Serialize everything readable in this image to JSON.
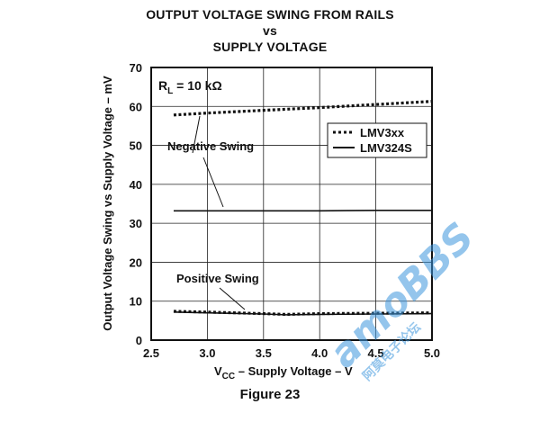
{
  "title_lines": [
    "OUTPUT VOLTAGE SWING FROM RAILS",
    "vs",
    "SUPPLY VOLTAGE"
  ],
  "figure_caption": "Figure 23",
  "watermark": {
    "brand": "amoBBS",
    "sub": "阿莫电子论坛"
  },
  "chart_data": {
    "type": "line",
    "xlabel_main": "V",
    "xlabel_sub": "CC",
    "xlabel_rest": " – Supply Voltage – V",
    "ylabel": "Output Voltage Swing vs Supply Voltage – mV",
    "xlim": [
      2.5,
      5.0
    ],
    "ylim": [
      0,
      70
    ],
    "xticks": [
      "2.5",
      "3.0",
      "3.5",
      "4.0",
      "4.5",
      "5.0"
    ],
    "yticks": [
      "0",
      "10",
      "20",
      "30",
      "40",
      "50",
      "60",
      "70"
    ],
    "grid": true,
    "condition_main": "R",
    "condition_sub": "L",
    "condition_rest": " = 10 kΩ",
    "legend_position": "top-right",
    "annotations": [
      "Negative Swing",
      "Positive Swing"
    ],
    "series": [
      {
        "name": "LMV3xx",
        "style": "dotted",
        "group": "Negative Swing",
        "x": [
          2.7,
          3.0,
          3.5,
          4.0,
          4.5,
          5.0
        ],
        "y": [
          57.8,
          58.3,
          59.0,
          59.7,
          60.5,
          61.3
        ]
      },
      {
        "name": "LMV324S",
        "style": "solid",
        "group": "Negative Swing",
        "x": [
          2.7,
          3.0,
          3.5,
          4.0,
          4.5,
          5.0
        ],
        "y": [
          33.2,
          33.2,
          33.2,
          33.2,
          33.3,
          33.3
        ]
      },
      {
        "name": "LMV3xx",
        "style": "dotted",
        "group": "Positive Swing",
        "x": [
          2.7,
          3.0,
          3.5,
          3.7,
          4.0,
          4.5,
          5.0
        ],
        "y": [
          7.4,
          7.2,
          6.8,
          6.6,
          6.8,
          6.9,
          7.0
        ]
      },
      {
        "name": "LMV324S",
        "style": "solid",
        "group": "Positive Swing",
        "x": [
          2.7,
          3.0,
          3.5,
          3.7,
          4.0,
          4.5,
          5.0
        ],
        "y": [
          7.2,
          7.0,
          6.7,
          6.5,
          6.6,
          6.7,
          6.8
        ]
      }
    ]
  }
}
